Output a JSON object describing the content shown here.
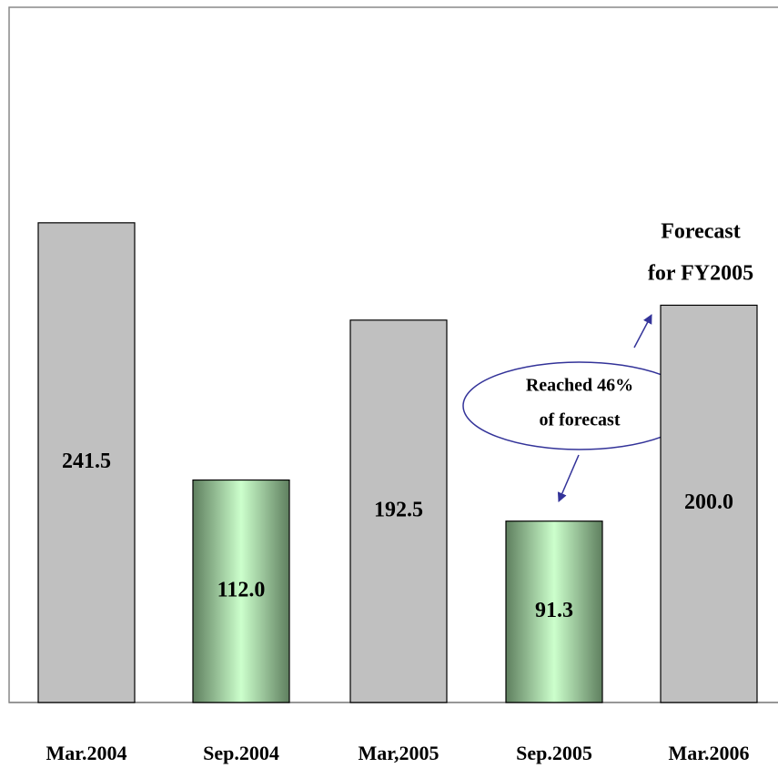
{
  "chart_data": {
    "type": "bar",
    "categories": [
      "Mar.2004",
      "Sep.2004",
      "Mar,2005",
      "Sep.2005",
      "Mar.2006"
    ],
    "values": [
      241.5,
      112.0,
      192.5,
      91.3,
      200.0
    ],
    "value_labels": [
      "241.5",
      "112.0",
      "192.5",
      "91.3",
      "200.0"
    ],
    "colors": [
      "#c0c0c0",
      "#ccffcc",
      "#c0c0c0",
      "#ccffcc",
      "#c0c0c0"
    ],
    "gradient": [
      false,
      true,
      false,
      true,
      false
    ],
    "ylim": [
      0,
      350
    ],
    "annotations": [
      "Forecast",
      "for FY2005",
      "Reached 46%",
      "of forecast"
    ]
  }
}
